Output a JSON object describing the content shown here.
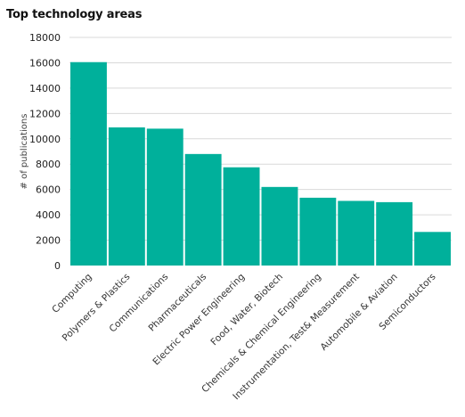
{
  "chart_data": {
    "type": "bar",
    "title": "Top technology areas",
    "xlabel": "",
    "ylabel": "# of publications",
    "ylim": [
      0,
      18000
    ],
    "yticks": [
      0,
      2000,
      4000,
      6000,
      8000,
      10000,
      12000,
      14000,
      16000,
      18000
    ],
    "grid": true,
    "legend": "none",
    "bar_color": "#00b09b",
    "categories": [
      "Computing",
      "Polymers & Plastics",
      "Communications",
      "Pharmaceuticals",
      "Electric Power Engineering",
      "Food, Water, Biotech",
      "Chemicals & Chemical Engineering",
      "Instrumentation, Test& Measurement",
      "Automobile & Aviation",
      "Semiconductors"
    ],
    "values": [
      16050,
      10900,
      10800,
      8800,
      7750,
      6200,
      5350,
      5100,
      5000,
      2650
    ]
  }
}
